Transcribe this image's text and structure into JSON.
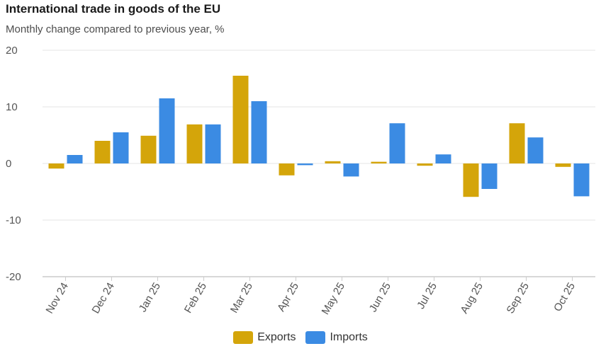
{
  "colors": {
    "exports": "#d4a50a",
    "imports": "#3b8be3",
    "grid": "#e6e6e6",
    "axis": "#cccccc"
  },
  "chart_data": {
    "type": "bar",
    "title": "International trade in goods of the EU",
    "subtitle": "Monthly change compared to previous year, %",
    "xlabel": "",
    "ylabel": "",
    "ylim": [
      -20,
      20
    ],
    "yticks": [
      20,
      10,
      0,
      -10,
      -20
    ],
    "grid": true,
    "legend_position": "bottom-center",
    "categories": [
      "Nov 24",
      "Dec 24",
      "Jan 25",
      "Feb 25",
      "Mar 25",
      "Apr 25",
      "May 25",
      "Jun 25",
      "Jul 25",
      "Aug 25",
      "Sep 25",
      "Oct 25"
    ],
    "series": [
      {
        "name": "Exports",
        "values": [
          -0.9,
          4.0,
          4.9,
          6.9,
          15.5,
          -2.1,
          0.4,
          0.3,
          -0.4,
          -5.9,
          7.1,
          -0.6
        ]
      },
      {
        "name": "Imports",
        "values": [
          1.5,
          5.5,
          11.5,
          6.9,
          11.0,
          -0.3,
          -2.3,
          7.1,
          1.6,
          -4.5,
          4.6,
          -5.8
        ]
      }
    ]
  }
}
